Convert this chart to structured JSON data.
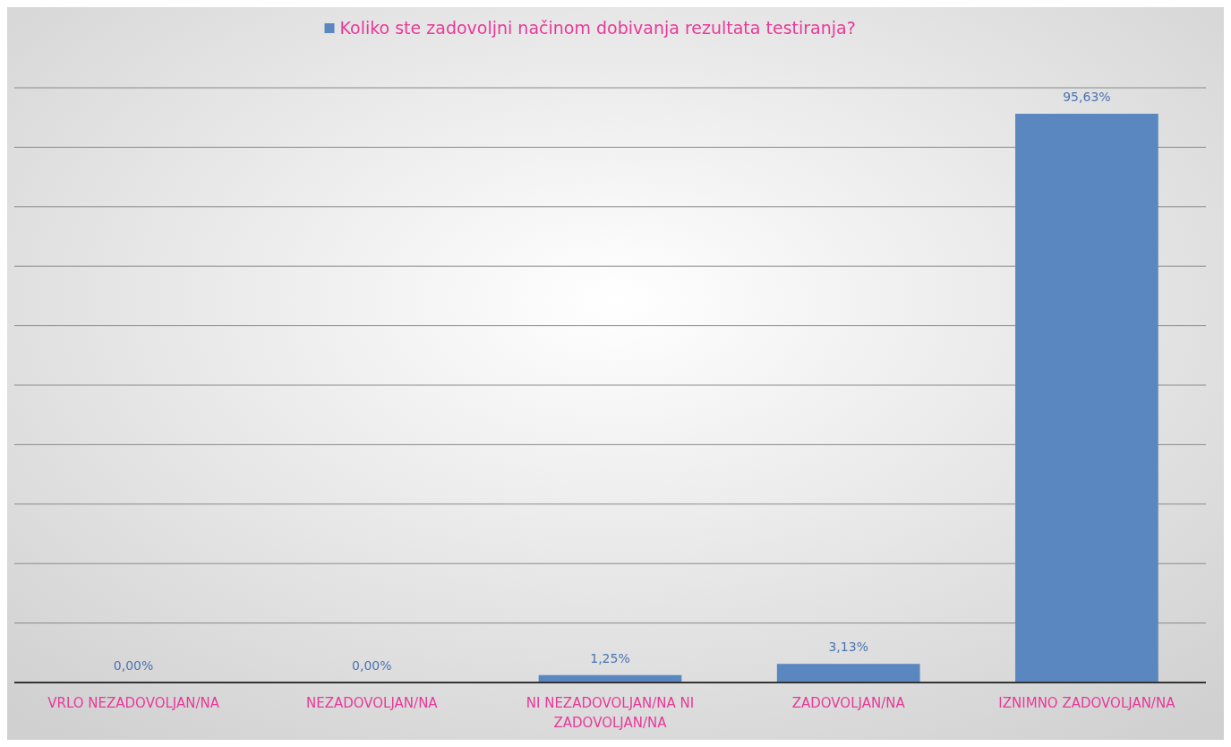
{
  "chart_data": {
    "type": "bar",
    "categories": [
      "VRLO NEZADOVOLJAN/NA",
      "NEZADOVOLJAN/NA",
      "NI NEZADOVOLJAN/NA NI ZADOVOLJAN/NA",
      "ZADOVOLJAN/NA",
      "IZNIMNO ZADOVOLJAN/NA"
    ],
    "series": [
      {
        "name": "Koliko ste zadovoljni načinom dobivanja rezultata testiranja?",
        "color": "#5b87c1",
        "values": [
          0,
          0,
          1.25,
          3.13,
          95.63
        ],
        "value_labels": [
          "0,00%",
          "0,00%",
          "1,25%",
          "3,13%",
          "95,63%"
        ]
      }
    ],
    "ylim": [
      0,
      100
    ],
    "yticks": [
      {
        "value": 0,
        "label": null
      },
      {
        "value": 10,
        "label": null
      },
      {
        "value": 20,
        "label": null
      },
      {
        "value": 30,
        "label": null
      },
      {
        "value": 40,
        "label": null
      },
      {
        "value": 50,
        "label": null
      },
      {
        "value": 60,
        "label": null
      },
      {
        "value": 70,
        "label": null
      },
      {
        "value": 80,
        "label": null
      },
      {
        "value": 90,
        "label": null
      },
      {
        "value": 100,
        "label": null
      }
    ],
    "tick_labels": "x",
    "grid": "y",
    "legend": "top"
  }
}
